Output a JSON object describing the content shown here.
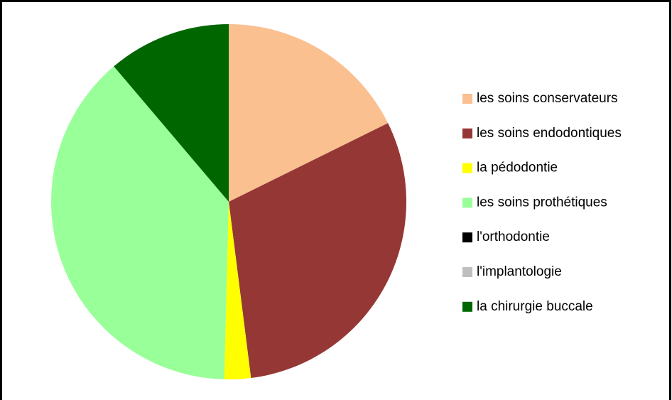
{
  "chart_data": {
    "type": "pie",
    "categories": [
      "les soins conservateurs",
      "les soins endodontiques",
      "la pédodontie",
      "les soins prothétiques",
      "l'orthodontie",
      "l'implantologie",
      "la chirurgie buccale"
    ],
    "values": [
      17.7,
      30.3,
      2.4,
      38.4,
      0,
      0,
      11.2
    ],
    "colors": [
      "#FAC090",
      "#953735",
      "#FFFF00",
      "#99FF99",
      "#000000",
      "#BFBFBF",
      "#006600"
    ],
    "legend": "right"
  }
}
